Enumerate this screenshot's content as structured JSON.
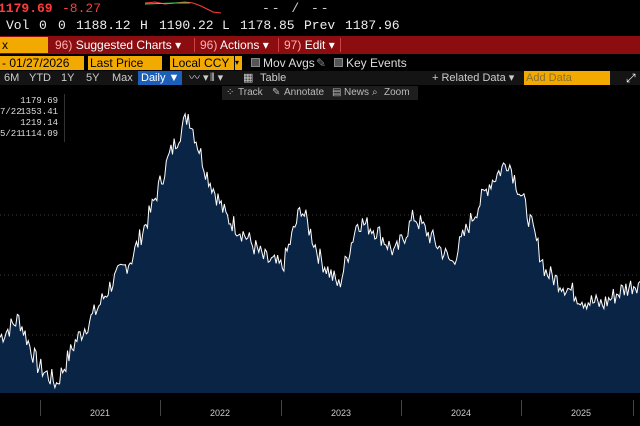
{
  "quote": {
    "last": "1179.69",
    "change": "-8.27",
    "separator": "-- / --"
  },
  "ohlc": {
    "vol_label": "Vol",
    "vol": "0",
    "open_label": "0",
    "open": "1188.12",
    "high_label": "H",
    "high": "1190.22",
    "low_label": "L",
    "low": "1178.85",
    "prev_label": "Prev",
    "prev": "1187.96"
  },
  "function_bar": {
    "field": "x",
    "items": [
      {
        "num": "96)",
        "label": "Suggested Charts ▾"
      },
      {
        "num": "96)",
        "label": "Actions ▾"
      },
      {
        "num": "97)",
        "label": "Edit ▾"
      }
    ]
  },
  "controls": {
    "date": "- 01/27/2026",
    "price_field": "Last Price",
    "currency": "Local CCY",
    "mov_avgs": "Mov Avgs",
    "key_events": "Key Events"
  },
  "period": {
    "buttons": [
      "6M",
      "YTD",
      "1Y",
      "5Y",
      "Max"
    ],
    "frequency": "Daily ▼",
    "table": "Table",
    "related": "+ Related Data ▾",
    "add_placeholder": "Add Data"
  },
  "toolbar": {
    "track": "Track",
    "annotate": "Annotate",
    "news": "News",
    "zoom": "Zoom"
  },
  "legend": [
    {
      "key": "",
      "value": "1179.69"
    },
    {
      "key": "7/22",
      "value": "1353.41"
    },
    {
      "key": "",
      "value": "1219.14"
    },
    {
      "key": "5/21",
      "value": "1114.09"
    }
  ],
  "chart_data": {
    "type": "area",
    "title": "",
    "xlabel": "",
    "ylabel": "",
    "x": [
      "2020-09",
      "2020-11",
      "2021-01",
      "2021-03",
      "2021-05",
      "2021-07",
      "2021-09",
      "2021-11",
      "2022-01",
      "2022-03",
      "2022-04",
      "2022-05",
      "2022-06",
      "2022-08",
      "2022-10",
      "2022-12",
      "2023-02",
      "2023-04",
      "2023-06",
      "2023-08",
      "2023-10",
      "2023-12",
      "2024-02",
      "2024-04",
      "2024-06",
      "2024-08",
      "2024-10",
      "2024-12",
      "2025-02",
      "2025-04",
      "2025-06",
      "2025-08",
      "2025-10",
      "2025-12",
      "2026-01"
    ],
    "values": [
      1120,
      1140,
      1090,
      1070,
      1115,
      1145,
      1180,
      1205,
      1255,
      1315,
      1360,
      1295,
      1250,
      1230,
      1205,
      1195,
      1260,
      1205,
      1175,
      1245,
      1235,
      1210,
      1250,
      1225,
      1200,
      1245,
      1285,
      1310,
      1255,
      1190,
      1175,
      1160,
      1155,
      1170,
      1180
    ],
    "ylim": [
      1060,
      1375
    ],
    "x_ticks": [
      "2021",
      "2022",
      "2023",
      "2024",
      "2025"
    ],
    "colors": {
      "fill": "#0a2445",
      "line": "#ffffff"
    }
  }
}
